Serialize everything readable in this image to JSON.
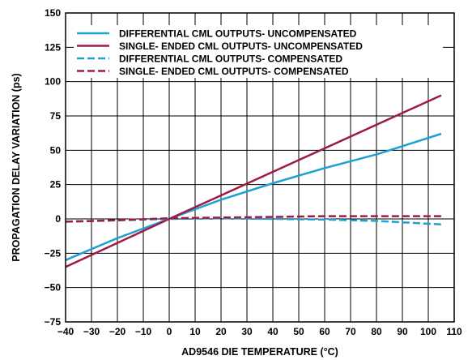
{
  "chart_data": {
    "type": "line",
    "title": "",
    "xlabel": "AD9546 DIE TEMPERATURE (°C)",
    "ylabel": "PROPAGATION DELAY VARIATION (ps)",
    "xlim": [
      -40,
      110
    ],
    "ylim": [
      -75,
      150
    ],
    "x_ticks": [
      -40,
      -30,
      -20,
      -10,
      0,
      10,
      20,
      30,
      40,
      50,
      60,
      70,
      80,
      90,
      100,
      110
    ],
    "y_ticks": [
      -75,
      -50,
      -25,
      0,
      25,
      50,
      75,
      100,
      125,
      150
    ],
    "x_tick_labels": [
      "−40",
      "−30",
      "−20",
      "−10",
      "0",
      "10",
      "20",
      "30",
      "40",
      "50",
      "60",
      "70",
      "80",
      "90",
      "100",
      "110"
    ],
    "y_tick_labels": [
      "−75",
      "−50",
      "−25",
      "0",
      "25",
      "50",
      "75",
      "100",
      "125",
      "150"
    ],
    "grid": true,
    "legend_position": "top-left",
    "series": [
      {
        "name": "DIFFERENTIAL CML OUTPUTS- UNCOMPENSATED",
        "color": "#1ea0d7",
        "style": "solid",
        "x": [
          -40,
          -20,
          0,
          20,
          40,
          60,
          80,
          90,
          105
        ],
        "y": [
          -30,
          -14,
          0,
          14,
          26,
          37,
          47,
          53,
          62
        ]
      },
      {
        "name": "SINGLE- ENDED CML OUTPUTS- UNCOMPENSATED",
        "color": "#9e1b44",
        "style": "solid",
        "x": [
          -40,
          0,
          105
        ],
        "y": [
          -35,
          0,
          90
        ]
      },
      {
        "name": "DIFFERENTIAL CML OUTPUTS- COMPENSATED",
        "color": "#1ea0d7",
        "style": "dashed",
        "x": [
          -40,
          -20,
          0,
          20,
          40,
          60,
          80,
          90,
          105
        ],
        "y": [
          -2,
          -1,
          0,
          0.5,
          0,
          -0.5,
          -1.5,
          -2.5,
          -4
        ]
      },
      {
        "name": "SINGLE- ENDED CML OUTPUTS- COMPENSATED",
        "color": "#9e1b44",
        "style": "dashed",
        "x": [
          -40,
          -20,
          0,
          20,
          40,
          60,
          80,
          105
        ],
        "y": [
          -2,
          -1,
          0.5,
          1,
          1.5,
          2,
          2,
          2
        ]
      }
    ]
  }
}
